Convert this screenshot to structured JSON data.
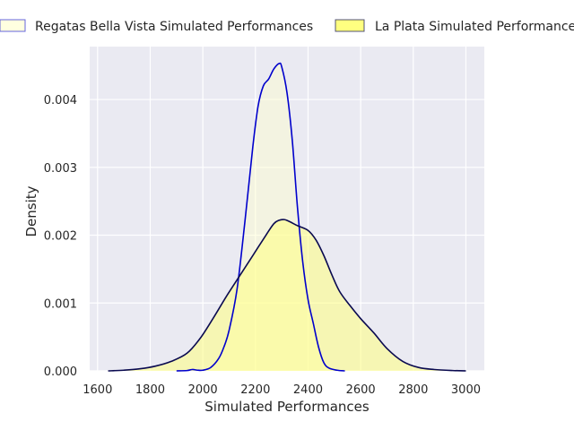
{
  "chart_data": {
    "type": "area",
    "title": "",
    "xlabel": "Simulated Performances",
    "ylabel": "Density",
    "xlim": [
      1570,
      3070
    ],
    "ylim": [
      0,
      0.00478
    ],
    "x_ticks": [
      1600,
      1800,
      2000,
      2200,
      2400,
      2600,
      2800,
      3000
    ],
    "y_ticks": [
      0.0,
      0.001,
      0.002,
      0.003,
      0.004
    ],
    "x_tick_labels": [
      "1600",
      "1800",
      "2000",
      "2200",
      "2400",
      "2600",
      "2800",
      "3000"
    ],
    "y_tick_labels": [
      "0.000",
      "0.001",
      "0.002",
      "0.003",
      "0.004"
    ],
    "grid": true,
    "legend_position": "top",
    "background_color": "#eaeaf2",
    "series": [
      {
        "name": "Regatas Bella Vista Simulated Performances",
        "line_color": "#0000cc",
        "fill_color": "#ffffcc",
        "points": [
          [
            1900,
            0.0
          ],
          [
            1940,
            5e-06
          ],
          [
            1960,
            2e-05
          ],
          [
            1980,
            1e-05
          ],
          [
            2000,
            1e-05
          ],
          [
            2030,
            5e-05
          ],
          [
            2060,
            0.00018
          ],
          [
            2080,
            0.00035
          ],
          [
            2100,
            0.0006
          ],
          [
            2130,
            0.0012
          ],
          [
            2160,
            0.0022
          ],
          [
            2190,
            0.0033
          ],
          [
            2210,
            0.0039
          ],
          [
            2230,
            0.0042
          ],
          [
            2250,
            0.0043
          ],
          [
            2270,
            0.00445
          ],
          [
            2290,
            0.00453
          ],
          [
            2300,
            0.00448
          ],
          [
            2320,
            0.0041
          ],
          [
            2340,
            0.0034
          ],
          [
            2360,
            0.0024
          ],
          [
            2380,
            0.0016
          ],
          [
            2400,
            0.00105
          ],
          [
            2420,
            0.0007
          ],
          [
            2440,
            0.00035
          ],
          [
            2460,
            0.00012
          ],
          [
            2480,
            4e-05
          ],
          [
            2510,
            1e-05
          ],
          [
            2540,
            0.0
          ]
        ]
      },
      {
        "name": "La Plata Simulated Performances",
        "line_color": "#0a0a50",
        "fill_color": "#ffff80",
        "points": [
          [
            1640,
            0.0
          ],
          [
            1700,
            1e-05
          ],
          [
            1760,
            3e-05
          ],
          [
            1820,
            7e-05
          ],
          [
            1880,
            0.00014
          ],
          [
            1940,
            0.00026
          ],
          [
            1990,
            0.00048
          ],
          [
            2040,
            0.00078
          ],
          [
            2090,
            0.0011
          ],
          [
            2140,
            0.0014
          ],
          [
            2190,
            0.0017
          ],
          [
            2240,
            0.002
          ],
          [
            2270,
            0.00217
          ],
          [
            2290,
            0.00222
          ],
          [
            2310,
            0.00223
          ],
          [
            2330,
            0.0022
          ],
          [
            2360,
            0.00214
          ],
          [
            2400,
            0.00207
          ],
          [
            2430,
            0.00193
          ],
          [
            2460,
            0.0017
          ],
          [
            2490,
            0.00142
          ],
          [
            2520,
            0.00117
          ],
          [
            2560,
            0.00096
          ],
          [
            2600,
            0.00077
          ],
          [
            2650,
            0.00056
          ],
          [
            2700,
            0.00033
          ],
          [
            2760,
            0.00014
          ],
          [
            2820,
            5e-05
          ],
          [
            2880,
            2e-05
          ],
          [
            2950,
            5e-06
          ],
          [
            3000,
            0.0
          ]
        ]
      }
    ]
  }
}
